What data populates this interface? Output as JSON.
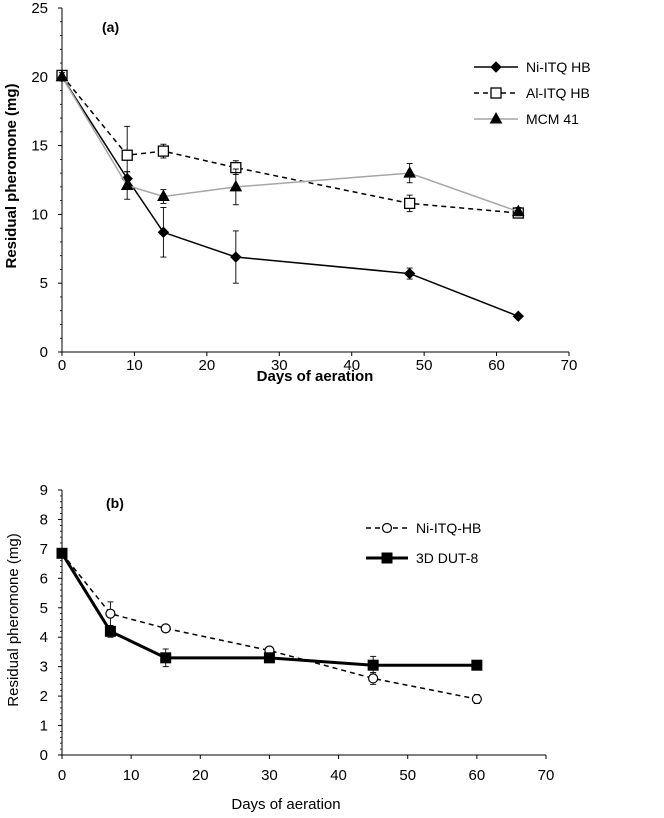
{
  "chart_data": [
    {
      "type": "line",
      "panel_label": "(a)",
      "xlabel": "Days of aeration",
      "ylabel": "Residual pheromone (mg)",
      "xlim": [
        0,
        70
      ],
      "ylim": [
        0,
        25
      ],
      "xticks": [
        "0",
        "10",
        "20",
        "30",
        "40",
        "50",
        "60",
        "70"
      ],
      "yticks": [
        "0",
        "5",
        "10",
        "15",
        "20",
        "25"
      ],
      "grid": false,
      "legend_position": "top-right",
      "series": [
        {
          "name": "Ni-ITQ HB",
          "marker": "diamond-filled",
          "line_style": "solid",
          "color": "#000000",
          "x": [
            0,
            9,
            14,
            24,
            48,
            63
          ],
          "y": [
            20.0,
            12.6,
            8.7,
            6.9,
            5.7,
            2.6
          ],
          "err": [
            0.3,
            0.5,
            1.8,
            1.9,
            0.4,
            0.0
          ]
        },
        {
          "name": "Al-ITQ HB",
          "marker": "square-open",
          "line_style": "dashed",
          "color": "#000000",
          "x": [
            0,
            9,
            14,
            24,
            48,
            63
          ],
          "y": [
            20.1,
            14.3,
            14.6,
            13.4,
            10.8,
            10.1
          ],
          "err": [
            0.3,
            2.1,
            0.5,
            0.5,
            0.6,
            0.3
          ]
        },
        {
          "name": "MCM 41",
          "marker": "triangle-filled",
          "line_style": "solid",
          "color": "#a6a6a6",
          "x": [
            0,
            9,
            14,
            24,
            48,
            63
          ],
          "y": [
            20.0,
            12.1,
            11.3,
            12.0,
            13.0,
            10.2
          ],
          "err": [
            0.3,
            1.0,
            0.5,
            1.3,
            0.7,
            0.3
          ]
        }
      ]
    },
    {
      "type": "line",
      "panel_label": "(b)",
      "xlabel": "Days of aeration",
      "ylabel": "Residual pheromone (mg)",
      "xlim": [
        0,
        70
      ],
      "ylim": [
        0,
        9
      ],
      "xticks": [
        "0",
        "10",
        "20",
        "30",
        "40",
        "50",
        "60",
        "70"
      ],
      "yticks": [
        "0",
        "1",
        "2",
        "3",
        "4",
        "5",
        "6",
        "7",
        "8",
        "9"
      ],
      "grid": false,
      "legend_position": "top-right",
      "series": [
        {
          "name": "Ni-ITQ-HB",
          "marker": "circle-open",
          "line_style": "dashed",
          "color": "#000000",
          "x": [
            0,
            7,
            15,
            30,
            45,
            60
          ],
          "y": [
            6.85,
            4.8,
            4.3,
            3.55,
            2.6,
            1.9
          ],
          "err": [
            0.1,
            0.4,
            0.1,
            0.1,
            0.2,
            0.15
          ]
        },
        {
          "name": "3D DUT-8",
          "marker": "square-filled",
          "line_style": "solid-thick",
          "color": "#000000",
          "x": [
            0,
            7,
            15,
            30,
            45,
            60
          ],
          "y": [
            6.85,
            4.2,
            3.3,
            3.3,
            3.05,
            3.05
          ],
          "err": [
            0.1,
            0.2,
            0.3,
            0.1,
            0.3,
            0.0
          ]
        }
      ]
    }
  ]
}
